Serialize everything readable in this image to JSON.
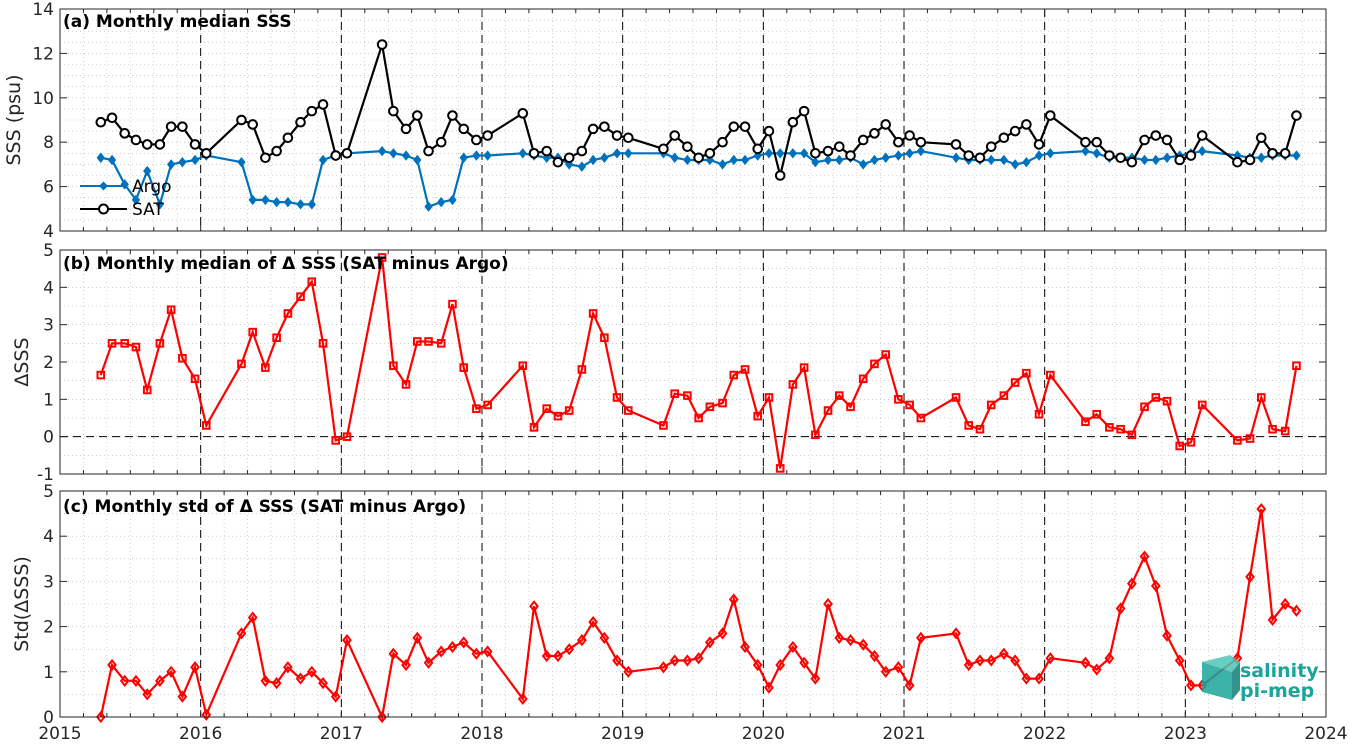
{
  "colors": {
    "argo": "#0072BD",
    "sat": "#000000",
    "delta": "#FF0000",
    "grid": "#b0b0b0",
    "axis": "#262626"
  },
  "x_ticks": [
    "2015",
    "2016",
    "2017",
    "2018",
    "2019",
    "2020",
    "2021",
    "2022",
    "2023",
    "2024"
  ],
  "logo": {
    "line1": "salinity",
    "line2": "pi-mep"
  },
  "chart_data": [
    {
      "type": "line",
      "title": "(a) Monthly median SSS",
      "ylabel": "SSS (psu)",
      "xlim": [
        2015,
        2024
      ],
      "ylim": [
        4,
        14
      ],
      "yticks": [
        "4",
        "6",
        "8",
        "10",
        "12",
        "14"
      ],
      "legend": {
        "placement": "left-lower",
        "entries": [
          "Argo",
          "SAT"
        ]
      },
      "series": [
        {
          "name": "Argo",
          "marker": "diamond",
          "x": [
            2015.29,
            2015.37,
            2015.46,
            2015.54,
            2015.62,
            2015.71,
            2015.79,
            2015.87,
            2015.96,
            2016.04,
            2016.29,
            2016.37,
            2016.46,
            2016.54,
            2016.62,
            2016.71,
            2016.79,
            2016.87,
            2016.96,
            2017.04,
            2017.29,
            2017.37,
            2017.46,
            2017.54,
            2017.62,
            2017.71,
            2017.79,
            2017.87,
            2017.96,
            2018.04,
            2018.29,
            2018.37,
            2018.46,
            2018.54,
            2018.62,
            2018.71,
            2018.79,
            2018.87,
            2018.96,
            2019.04,
            2019.29,
            2019.37,
            2019.46,
            2019.54,
            2019.62,
            2019.71,
            2019.79,
            2019.87,
            2019.96,
            2020.04,
            2020.12,
            2020.21,
            2020.29,
            2020.37,
            2020.46,
            2020.54,
            2020.62,
            2020.71,
            2020.79,
            2020.87,
            2020.96,
            2021.04,
            2021.12,
            2021.37,
            2021.46,
            2021.54,
            2021.62,
            2021.71,
            2021.79,
            2021.87,
            2021.96,
            2022.04,
            2022.29,
            2022.37,
            2022.46,
            2022.54,
            2022.62,
            2022.71,
            2022.79,
            2022.87,
            2022.96,
            2023.04,
            2023.12,
            2023.37,
            2023.46,
            2023.54,
            2023.62,
            2023.71,
            2023.79
          ],
          "y": [
            7.3,
            7.2,
            6.1,
            5.4,
            6.7,
            5.2,
            7.0,
            7.1,
            7.2,
            7.4,
            7.1,
            5.4,
            5.4,
            5.3,
            5.3,
            5.2,
            5.2,
            7.2,
            7.4,
            7.5,
            7.6,
            7.5,
            7.4,
            7.2,
            5.1,
            5.3,
            5.4,
            7.3,
            7.4,
            7.4,
            7.5,
            7.4,
            7.3,
            7.3,
            7.0,
            6.9,
            7.2,
            7.3,
            7.5,
            7.5,
            7.5,
            7.3,
            7.2,
            7.2,
            7.2,
            7.0,
            7.2,
            7.2,
            7.4,
            7.5,
            7.5,
            7.5,
            7.5,
            7.1,
            7.2,
            7.2,
            7.3,
            7.0,
            7.2,
            7.3,
            7.4,
            7.5,
            7.6,
            7.3,
            7.2,
            7.2,
            7.2,
            7.2,
            7.0,
            7.1,
            7.4,
            7.5,
            7.6,
            7.5,
            7.3,
            7.3,
            7.3,
            7.2,
            7.2,
            7.3,
            7.4,
            7.5,
            7.6,
            7.4,
            7.3,
            7.3,
            7.4,
            7.4,
            7.4
          ]
        },
        {
          "name": "SAT",
          "marker": "circle",
          "x": [
            2015.29,
            2015.37,
            2015.46,
            2015.54,
            2015.62,
            2015.71,
            2015.79,
            2015.87,
            2015.96,
            2016.04,
            2016.29,
            2016.37,
            2016.46,
            2016.54,
            2016.62,
            2016.71,
            2016.79,
            2016.87,
            2016.96,
            2017.04,
            2017.29,
            2017.37,
            2017.46,
            2017.54,
            2017.62,
            2017.71,
            2017.79,
            2017.87,
            2017.96,
            2018.04,
            2018.29,
            2018.37,
            2018.46,
            2018.54,
            2018.62,
            2018.71,
            2018.79,
            2018.87,
            2018.96,
            2019.04,
            2019.29,
            2019.37,
            2019.46,
            2019.54,
            2019.62,
            2019.71,
            2019.79,
            2019.87,
            2019.96,
            2020.04,
            2020.12,
            2020.21,
            2020.29,
            2020.37,
            2020.46,
            2020.54,
            2020.62,
            2020.71,
            2020.79,
            2020.87,
            2020.96,
            2021.04,
            2021.12,
            2021.37,
            2021.46,
            2021.54,
            2021.62,
            2021.71,
            2021.79,
            2021.87,
            2021.96,
            2022.04,
            2022.29,
            2022.37,
            2022.46,
            2022.54,
            2022.62,
            2022.71,
            2022.79,
            2022.87,
            2022.96,
            2023.04,
            2023.12,
            2023.37,
            2023.46,
            2023.54,
            2023.62,
            2023.71,
            2023.79
          ],
          "y": [
            8.9,
            9.1,
            8.4,
            8.1,
            7.9,
            7.9,
            8.7,
            8.7,
            7.9,
            7.5,
            9.0,
            8.8,
            7.3,
            7.6,
            8.2,
            8.9,
            9.4,
            9.7,
            7.4,
            7.5,
            12.4,
            9.4,
            8.6,
            9.2,
            7.6,
            8.0,
            9.2,
            8.6,
            8.1,
            8.3,
            9.3,
            7.5,
            7.6,
            7.1,
            7.3,
            7.6,
            8.6,
            8.7,
            8.3,
            8.2,
            7.7,
            8.3,
            7.8,
            7.3,
            7.5,
            8.0,
            8.7,
            8.7,
            7.7,
            8.5,
            6.5,
            8.9,
            9.4,
            7.5,
            7.6,
            7.8,
            7.4,
            8.1,
            8.4,
            8.8,
            8.0,
            8.3,
            8.0,
            7.9,
            7.4,
            7.3,
            7.8,
            8.2,
            8.5,
            8.8,
            7.9,
            9.2,
            8.0,
            8.0,
            7.4,
            7.3,
            7.1,
            8.1,
            8.3,
            8.1,
            7.2,
            7.4,
            8.3,
            7.1,
            7.2,
            8.2,
            7.5,
            7.5,
            9.2
          ]
        }
      ]
    },
    {
      "type": "line",
      "title": "(b) Monthly median of Δ SSS (SAT minus Argo)",
      "ylabel": "ΔSSS",
      "xlim": [
        2015,
        2024
      ],
      "ylim": [
        -1,
        5
      ],
      "yticks": [
        "-1",
        "0",
        "1",
        "2",
        "3",
        "4",
        "5"
      ],
      "series": [
        {
          "name": "",
          "marker": "square",
          "x": [
            2015.29,
            2015.37,
            2015.46,
            2015.54,
            2015.62,
            2015.71,
            2015.79,
            2015.87,
            2015.96,
            2016.04,
            2016.29,
            2016.37,
            2016.46,
            2016.54,
            2016.62,
            2016.71,
            2016.79,
            2016.87,
            2016.96,
            2017.04,
            2017.29,
            2017.37,
            2017.46,
            2017.54,
            2017.62,
            2017.71,
            2017.79,
            2017.87,
            2017.96,
            2018.04,
            2018.29,
            2018.37,
            2018.46,
            2018.54,
            2018.62,
            2018.71,
            2018.79,
            2018.87,
            2018.96,
            2019.04,
            2019.29,
            2019.37,
            2019.46,
            2019.54,
            2019.62,
            2019.71,
            2019.79,
            2019.87,
            2019.96,
            2020.04,
            2020.12,
            2020.21,
            2020.29,
            2020.37,
            2020.46,
            2020.54,
            2020.62,
            2020.71,
            2020.79,
            2020.87,
            2020.96,
            2021.04,
            2021.12,
            2021.37,
            2021.46,
            2021.54,
            2021.62,
            2021.71,
            2021.79,
            2021.87,
            2021.96,
            2022.04,
            2022.29,
            2022.37,
            2022.46,
            2022.54,
            2022.62,
            2022.71,
            2022.79,
            2022.87,
            2022.96,
            2023.04,
            2023.12,
            2023.37,
            2023.46,
            2023.54,
            2023.62,
            2023.71,
            2023.79
          ],
          "y": [
            1.65,
            2.5,
            2.5,
            2.4,
            1.25,
            2.5,
            3.4,
            2.1,
            1.55,
            0.3,
            1.95,
            2.8,
            1.85,
            2.65,
            3.3,
            3.75,
            4.15,
            2.5,
            -0.1,
            0.0,
            4.8,
            1.9,
            1.4,
            2.55,
            2.55,
            2.5,
            3.55,
            1.85,
            0.75,
            0.85,
            1.9,
            0.25,
            0.75,
            0.55,
            0.7,
            1.8,
            3.3,
            2.65,
            1.05,
            0.7,
            0.3,
            1.15,
            1.1,
            0.5,
            0.8,
            0.9,
            1.65,
            1.8,
            0.55,
            1.05,
            -0.85,
            1.4,
            1.85,
            0.05,
            0.7,
            1.1,
            0.8,
            1.55,
            1.95,
            2.2,
            1.0,
            0.85,
            0.5,
            1.05,
            0.3,
            0.2,
            0.85,
            1.1,
            1.45,
            1.7,
            0.6,
            1.65,
            0.4,
            0.6,
            0.25,
            0.2,
            0.05,
            0.8,
            1.05,
            0.95,
            -0.25,
            -0.15,
            0.85,
            -0.1,
            -0.05,
            1.05,
            0.2,
            0.15,
            1.9
          ]
        }
      ]
    },
    {
      "type": "line",
      "title": "(c) Monthly std of Δ SSS (SAT minus Argo)",
      "ylabel": "Std(ΔSSS)",
      "xlim": [
        2015,
        2024
      ],
      "ylim": [
        0,
        5
      ],
      "yticks": [
        "0",
        "1",
        "2",
        "3",
        "4",
        "5"
      ],
      "series": [
        {
          "name": "",
          "marker": "diamond",
          "x": [
            2015.29,
            2015.37,
            2015.46,
            2015.54,
            2015.62,
            2015.71,
            2015.79,
            2015.87,
            2015.96,
            2016.04,
            2016.29,
            2016.37,
            2016.46,
            2016.54,
            2016.62,
            2016.71,
            2016.79,
            2016.87,
            2016.96,
            2017.04,
            2017.29,
            2017.37,
            2017.46,
            2017.54,
            2017.62,
            2017.71,
            2017.79,
            2017.87,
            2017.96,
            2018.04,
            2018.29,
            2018.37,
            2018.46,
            2018.54,
            2018.62,
            2018.71,
            2018.79,
            2018.87,
            2018.96,
            2019.04,
            2019.29,
            2019.37,
            2019.46,
            2019.54,
            2019.62,
            2019.71,
            2019.79,
            2019.87,
            2019.96,
            2020.04,
            2020.12,
            2020.21,
            2020.29,
            2020.37,
            2020.46,
            2020.54,
            2020.62,
            2020.71,
            2020.79,
            2020.87,
            2020.96,
            2021.04,
            2021.12,
            2021.37,
            2021.46,
            2021.54,
            2021.62,
            2021.71,
            2021.79,
            2021.87,
            2021.96,
            2022.04,
            2022.29,
            2022.37,
            2022.46,
            2022.54,
            2022.62,
            2022.71,
            2022.79,
            2022.87,
            2022.96,
            2023.04,
            2023.12,
            2023.37,
            2023.46,
            2023.54,
            2023.62,
            2023.71,
            2023.79
          ],
          "y": [
            0.0,
            1.15,
            0.8,
            0.8,
            0.5,
            0.8,
            1.0,
            0.45,
            1.1,
            0.05,
            1.85,
            2.2,
            0.8,
            0.75,
            1.1,
            0.85,
            1.0,
            0.75,
            0.45,
            1.7,
            0.0,
            1.4,
            1.15,
            1.75,
            1.2,
            1.45,
            1.55,
            1.65,
            1.4,
            1.45,
            0.4,
            2.45,
            1.35,
            1.35,
            1.5,
            1.7,
            2.1,
            1.75,
            1.25,
            1.0,
            1.1,
            1.25,
            1.25,
            1.3,
            1.65,
            1.85,
            2.6,
            1.55,
            1.15,
            0.65,
            1.15,
            1.55,
            1.2,
            0.85,
            2.5,
            1.75,
            1.7,
            1.6,
            1.35,
            1.0,
            1.1,
            0.7,
            1.75,
            1.85,
            1.15,
            1.25,
            1.25,
            1.4,
            1.25,
            0.85,
            0.85,
            1.3,
            1.2,
            1.05,
            1.3,
            2.4,
            2.95,
            3.55,
            2.9,
            1.8,
            1.25,
            0.7,
            0.7,
            1.3,
            3.1,
            4.6,
            2.15,
            2.5,
            2.35
          ]
        }
      ]
    }
  ]
}
